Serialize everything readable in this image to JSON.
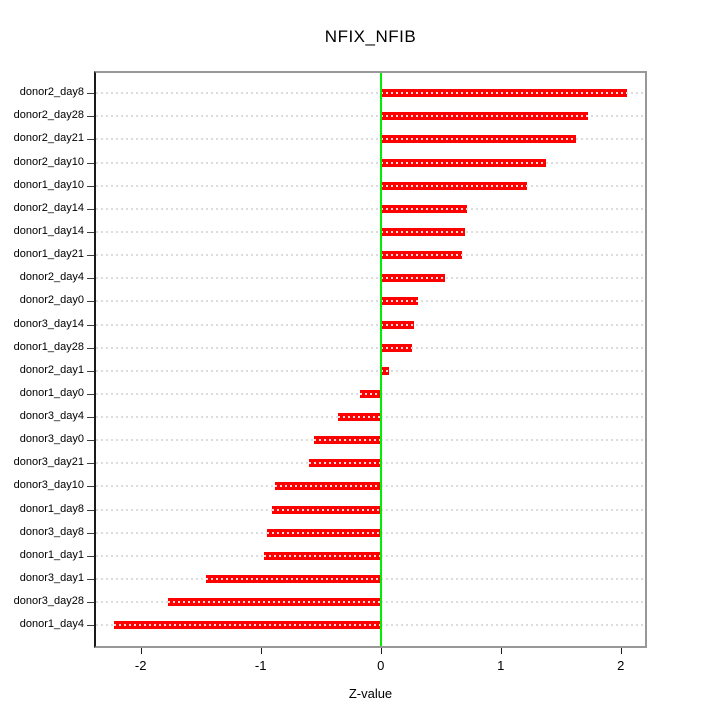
{
  "chart_data": {
    "type": "bar",
    "orientation": "horizontal",
    "title": "NFIX_NFIB",
    "xlabel": "Z-value",
    "ylabel": "",
    "categories": [
      "donor2_day8",
      "donor2_day28",
      "donor2_day21",
      "donor2_day10",
      "donor1_day10",
      "donor2_day14",
      "donor1_day14",
      "donor1_day21",
      "donor2_day4",
      "donor2_day0",
      "donor3_day14",
      "donor1_day28",
      "donor2_day1",
      "donor1_day0",
      "donor3_day4",
      "donor3_day0",
      "donor3_day21",
      "donor3_day10",
      "donor1_day8",
      "donor3_day8",
      "donor1_day1",
      "donor3_day1",
      "donor3_day28",
      "donor1_day4"
    ],
    "values": [
      2.05,
      1.73,
      1.63,
      1.38,
      1.22,
      0.72,
      0.7,
      0.68,
      0.54,
      0.31,
      0.28,
      0.26,
      0.07,
      -0.17,
      -0.36,
      -0.56,
      -0.6,
      -0.88,
      -0.91,
      -0.95,
      -0.97,
      -1.46,
      -1.77,
      -2.22
    ],
    "x_tick_labels": [
      "-2",
      "-1",
      "0",
      "1",
      "2"
    ],
    "x_tick_values": [
      -2,
      -1,
      0,
      1,
      2
    ],
    "xlim": [
      -2.39,
      2.22
    ],
    "grid": true,
    "grid_style": "dashed",
    "legend_position": "none",
    "colors": {
      "bar": "#ff0000",
      "zero_line": "#00ee00",
      "gridline": "#dcdcdc",
      "frame": "#989898",
      "axis": "#1a1a1a",
      "text": "#000000",
      "background": "#ffffff"
    }
  }
}
